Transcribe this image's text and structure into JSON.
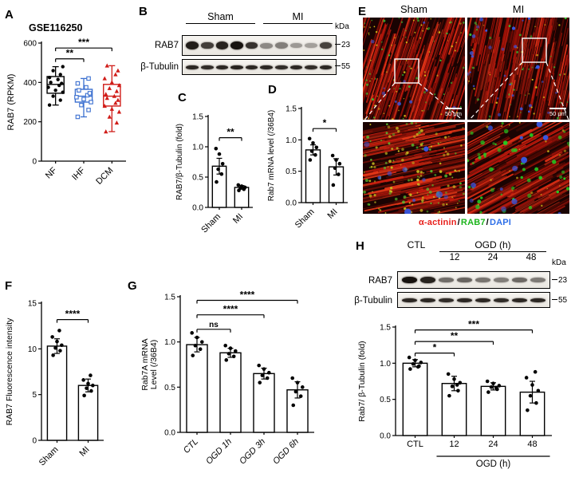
{
  "panels": {
    "A": {
      "label": "A",
      "title": "GSE116250"
    },
    "B": {
      "label": "B"
    },
    "C": {
      "label": "C"
    },
    "D": {
      "label": "D"
    },
    "E": {
      "label": "E",
      "col_titles": [
        "Sham",
        "MI"
      ],
      "scale_text": "50 μm",
      "legend": {
        "separator": "/",
        "items": [
          {
            "text": "α-actinin",
            "color": "#e8211d"
          },
          {
            "text": "RAB7",
            "color": "#1db51d"
          },
          {
            "text": "DAPI",
            "color": "#2e6fe8"
          }
        ]
      }
    },
    "F": {
      "label": "F"
    },
    "G": {
      "label": "G"
    },
    "H": {
      "label": "H"
    }
  },
  "blots": {
    "B": {
      "kda_label": "kDa",
      "groups": [
        {
          "label": "Sham"
        },
        {
          "label": "MI"
        }
      ],
      "rows": [
        {
          "label": "RAB7",
          "kda": "23",
          "bands": [
            0.95,
            0.8,
            0.92,
            1,
            0.85,
            0.45,
            0.5,
            0.38,
            0.35,
            0.78
          ]
        },
        {
          "label": "β-Tubulin",
          "kda": "55",
          "bands": [
            0.9,
            0.88,
            0.9,
            0.92,
            0.9,
            0.9,
            0.88,
            0.9,
            0.88,
            0.9
          ]
        }
      ]
    },
    "H": {
      "kda_label": "kDa",
      "ctl_label": "CTL",
      "ogd_label": "OGD (h)",
      "timepoints": [
        "12",
        "24",
        "48"
      ],
      "rows": [
        {
          "label": "RAB7",
          "kda": "23",
          "bands": [
            1,
            0.92,
            0.58,
            0.62,
            0.55,
            0.5,
            0.6,
            0.52
          ]
        },
        {
          "label": "β-Tubulin",
          "kda": "55",
          "bands": [
            0.9,
            0.9,
            0.88,
            0.9,
            0.9,
            0.88,
            0.9,
            0.9
          ]
        }
      ]
    }
  },
  "chart_data": [
    {
      "id": "A",
      "type": "box",
      "title": "GSE116250",
      "ylabel": "RAB7 (RPKM)",
      "categories": [
        "NF",
        "IHF",
        "DCM"
      ],
      "ylim": [
        0,
        600
      ],
      "yticks": [
        "0",
        "200",
        "400",
        "600"
      ],
      "groups": [
        {
          "label": "NF",
          "color": "#000000",
          "marker": "circle",
          "median": 390,
          "q1": 345,
          "q3": 430,
          "whisker_low": 285,
          "whisker_high": 480,
          "points": [
            285,
            310,
            330,
            350,
            360,
            375,
            385,
            395,
            400,
            415,
            425,
            440,
            460,
            480
          ]
        },
        {
          "label": "IHF",
          "color": "#3a6fd0",
          "marker": "square",
          "median": 330,
          "q1": 300,
          "q3": 365,
          "whisker_low": 225,
          "whisker_high": 420,
          "points": [
            225,
            260,
            285,
            300,
            315,
            325,
            335,
            345,
            360,
            375,
            395,
            420
          ]
        },
        {
          "label": "DCM",
          "color": "#d01c18",
          "marker": "triangle",
          "median": 330,
          "q1": 280,
          "q3": 390,
          "whisker_low": 150,
          "whisker_high": 485,
          "points": [
            150,
            195,
            225,
            250,
            265,
            280,
            295,
            310,
            320,
            330,
            340,
            355,
            370,
            385,
            400,
            420,
            440,
            460,
            485
          ]
        }
      ],
      "sig": [
        {
          "a": 0,
          "b": 1,
          "label": "**",
          "y": 520
        },
        {
          "a": 0,
          "b": 2,
          "label": "***",
          "y": 575
        }
      ]
    },
    {
      "id": "C",
      "type": "bar",
      "ylabel": "RAB7/β-Tubulin (fold)",
      "categories": [
        "Sham",
        "MI"
      ],
      "values": [
        0.68,
        0.33
      ],
      "errors": [
        0.13,
        0.03
      ],
      "points": [
        [
          0.42,
          0.55,
          0.63,
          0.72,
          0.88,
          0.97
        ],
        [
          0.28,
          0.3,
          0.32,
          0.33,
          0.35,
          0.37
        ]
      ],
      "ylim": [
        0,
        1.5
      ],
      "yticks": [
        "0.0",
        "0.5",
        "1.0",
        "1.5"
      ],
      "sig": [
        {
          "a": 0,
          "b": 1,
          "label": "**",
          "y": 1.15
        }
      ]
    },
    {
      "id": "D",
      "type": "bar",
      "ylabel": "Rab7 mRNA level (/36B4)",
      "categories": [
        "Sham",
        "MI"
      ],
      "values": [
        0.84,
        0.57
      ],
      "errors": [
        0.08,
        0.13
      ],
      "points": [
        [
          0.68,
          0.76,
          0.82,
          0.88,
          0.95,
          1.02
        ],
        [
          0.28,
          0.45,
          0.55,
          0.62,
          0.68,
          0.75
        ]
      ],
      "ylim": [
        0,
        1.5
      ],
      "yticks": [
        "0.0",
        "0.5",
        "1.0",
        "1.5"
      ],
      "sig": [
        {
          "a": 0,
          "b": 1,
          "label": "*",
          "y": 1.18
        }
      ]
    },
    {
      "id": "F",
      "type": "bar",
      "ylabel": "RAB7 Fluorescence intensity",
      "categories": [
        "Sham",
        "MI"
      ],
      "values": [
        10.3,
        6.0
      ],
      "errors": [
        0.8,
        0.7
      ],
      "points": [
        [
          9.3,
          9.8,
          10.1,
          10.4,
          10.8,
          11.3,
          12.0
        ],
        [
          4.9,
          5.4,
          5.7,
          6.0,
          6.2,
          6.6,
          7.1
        ]
      ],
      "ylim": [
        0,
        15
      ],
      "yticks": [
        "0",
        "5",
        "10",
        "15"
      ],
      "sig": [
        {
          "a": 0,
          "b": 1,
          "label": "****",
          "y": 13.2
        }
      ]
    },
    {
      "id": "G",
      "type": "bar",
      "ylabel": "Rab7A mRNA\nLevel (/36B4)",
      "categories": [
        "CTL",
        "OGD 1h",
        "OGD 3h",
        "OGD 6h"
      ],
      "values": [
        0.97,
        0.88,
        0.65,
        0.47
      ],
      "errors": [
        0.08,
        0.05,
        0.06,
        0.09
      ],
      "points": [
        [
          0.85,
          0.92,
          0.96,
          1.0,
          1.05,
          1.1
        ],
        [
          0.8,
          0.84,
          0.87,
          0.9,
          0.93,
          0.96
        ],
        [
          0.55,
          0.6,
          0.63,
          0.66,
          0.7,
          0.74
        ],
        [
          0.3,
          0.4,
          0.45,
          0.5,
          0.55,
          0.6
        ]
      ],
      "ylim": [
        0,
        1.5
      ],
      "yticks": [
        "0.0",
        "0.5",
        "1.0",
        "1.5"
      ],
      "sig": [
        {
          "a": 0,
          "b": 1,
          "label": "ns",
          "y": 1.14
        },
        {
          "a": 0,
          "b": 2,
          "label": "****",
          "y": 1.3
        },
        {
          "a": 0,
          "b": 3,
          "label": "****",
          "y": 1.46
        }
      ]
    },
    {
      "id": "H",
      "type": "bar",
      "ylabel": "Rab7/ β-Tubulin (fold)",
      "categories": [
        "CTL",
        "12",
        "24",
        "48"
      ],
      "values": [
        1.0,
        0.72,
        0.68,
        0.6
      ],
      "errors": [
        0.05,
        0.1,
        0.05,
        0.15
      ],
      "points": [
        [
          0.92,
          0.96,
          0.99,
          1.01,
          1.04,
          1.08,
          0.95
        ],
        [
          0.55,
          0.62,
          0.68,
          0.73,
          0.78,
          0.85,
          0.7
        ],
        [
          0.6,
          0.64,
          0.67,
          0.69,
          0.72,
          0.75,
          0.66
        ],
        [
          0.35,
          0.45,
          0.55,
          0.62,
          0.7,
          0.8,
          0.88
        ]
      ],
      "ylim": [
        0,
        1.5
      ],
      "yticks": [
        "0.0",
        "0.5",
        "1.0",
        "1.5"
      ],
      "xlabel": "OGD (h)",
      "xlabel_span": [
        1,
        3
      ],
      "sig": [
        {
          "a": 0,
          "b": 1,
          "label": "*",
          "y": 1.14
        },
        {
          "a": 0,
          "b": 2,
          "label": "**",
          "y": 1.3
        },
        {
          "a": 0,
          "b": 3,
          "label": "***",
          "y": 1.46
        }
      ]
    }
  ]
}
